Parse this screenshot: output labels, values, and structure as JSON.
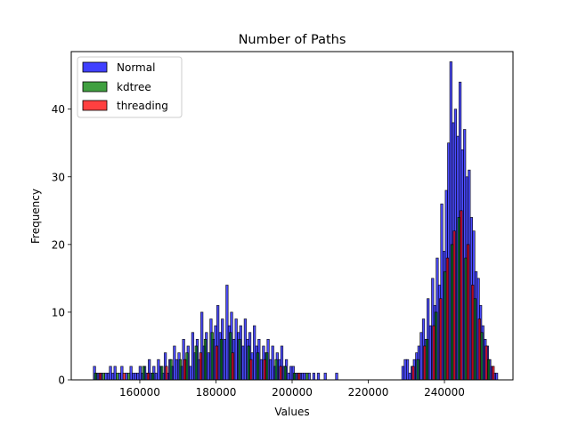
{
  "chart_data": {
    "type": "histogram",
    "title": "Number of Paths",
    "xlabel": "Values",
    "ylabel": "Frequency",
    "xlim": [
      142000,
      258000
    ],
    "ylim": [
      0,
      48.5
    ],
    "xticks": [
      {
        "value": 160000,
        "label": "160000"
      },
      {
        "value": 180000,
        "label": "180000"
      },
      {
        "value": 200000,
        "label": "200000"
      },
      {
        "value": 220000,
        "label": "220000"
      },
      {
        "value": 240000,
        "label": "240000"
      }
    ],
    "yticks": [
      {
        "value": 0,
        "label": "0"
      },
      {
        "value": 10,
        "label": "10"
      },
      {
        "value": 20,
        "label": "20"
      },
      {
        "value": 30,
        "label": "30"
      },
      {
        "value": 40,
        "label": "40"
      }
    ],
    "legend": {
      "position": "top-left",
      "entries": [
        {
          "name": "Normal",
          "color": "#4040ff"
        },
        {
          "name": "kdtree",
          "color": "#40a040"
        },
        {
          "name": "threading",
          "color": "#ff4040"
        }
      ]
    },
    "series": [
      {
        "name": "Normal",
        "color": "#0000ff",
        "opacity": 0.7,
        "bin_width": 600,
        "bins": [
          [
            147800,
            2
          ],
          [
            148400,
            1
          ],
          [
            149000,
            1
          ],
          [
            149600,
            1
          ],
          [
            150800,
            1
          ],
          [
            151400,
            1
          ],
          [
            152000,
            2
          ],
          [
            152600,
            1
          ],
          [
            153200,
            2
          ],
          [
            154400,
            1
          ],
          [
            155000,
            2
          ],
          [
            156200,
            1
          ],
          [
            157400,
            2
          ],
          [
            158000,
            1
          ],
          [
            158600,
            1
          ],
          [
            159200,
            1
          ],
          [
            159800,
            2
          ],
          [
            160400,
            1
          ],
          [
            161000,
            2
          ],
          [
            161600,
            1
          ],
          [
            162200,
            3
          ],
          [
            162800,
            1
          ],
          [
            163400,
            2
          ],
          [
            164000,
            1
          ],
          [
            164600,
            3
          ],
          [
            165200,
            2
          ],
          [
            165800,
            1
          ],
          [
            166400,
            4
          ],
          [
            167000,
            1
          ],
          [
            167600,
            3
          ],
          [
            168200,
            2
          ],
          [
            168800,
            5
          ],
          [
            169400,
            3
          ],
          [
            170000,
            4
          ],
          [
            170600,
            2
          ],
          [
            171200,
            6
          ],
          [
            171800,
            3
          ],
          [
            172400,
            5
          ],
          [
            173000,
            2
          ],
          [
            173600,
            7
          ],
          [
            174200,
            4
          ],
          [
            174800,
            6
          ],
          [
            175400,
            3
          ],
          [
            176000,
            10
          ],
          [
            176600,
            5
          ],
          [
            177200,
            7
          ],
          [
            177800,
            4
          ],
          [
            178400,
            9
          ],
          [
            179000,
            6
          ],
          [
            179600,
            8
          ],
          [
            180200,
            11
          ],
          [
            180800,
            7
          ],
          [
            181400,
            9
          ],
          [
            182000,
            6
          ],
          [
            182600,
            14
          ],
          [
            183200,
            8
          ],
          [
            183800,
            10
          ],
          [
            184400,
            6
          ],
          [
            185000,
            9
          ],
          [
            185600,
            7
          ],
          [
            186200,
            8
          ],
          [
            186800,
            5
          ],
          [
            187400,
            9
          ],
          [
            188000,
            6
          ],
          [
            188600,
            7
          ],
          [
            189200,
            4
          ],
          [
            189800,
            8
          ],
          [
            190400,
            5
          ],
          [
            191000,
            6
          ],
          [
            191600,
            3
          ],
          [
            192200,
            5
          ],
          [
            192800,
            4
          ],
          [
            193400,
            6
          ],
          [
            194000,
            3
          ],
          [
            194600,
            5
          ],
          [
            195200,
            2
          ],
          [
            195800,
            4
          ],
          [
            196400,
            3
          ],
          [
            197000,
            5
          ],
          [
            197600,
            2
          ],
          [
            198200,
            3
          ],
          [
            198800,
            1
          ],
          [
            199400,
            2
          ],
          [
            200000,
            2
          ],
          [
            200600,
            1
          ],
          [
            201200,
            1
          ],
          [
            201800,
            1
          ],
          [
            202400,
            1
          ],
          [
            203000,
            1
          ],
          [
            204200,
            1
          ],
          [
            205400,
            1
          ],
          [
            206600,
            1
          ],
          [
            208400,
            1
          ],
          [
            211400,
            1
          ],
          [
            228800,
            2
          ],
          [
            229400,
            3
          ],
          [
            230000,
            3
          ],
          [
            230600,
            1
          ],
          [
            231200,
            2
          ],
          [
            231800,
            3
          ],
          [
            232400,
            4
          ],
          [
            233000,
            5
          ],
          [
            233600,
            7
          ],
          [
            234200,
            9
          ],
          [
            234800,
            6
          ],
          [
            235400,
            12
          ],
          [
            236000,
            8
          ],
          [
            236600,
            15
          ],
          [
            237200,
            11
          ],
          [
            237800,
            18
          ],
          [
            238400,
            14
          ],
          [
            239000,
            26
          ],
          [
            239600,
            19
          ],
          [
            240200,
            28
          ],
          [
            240800,
            35
          ],
          [
            241400,
            47
          ],
          [
            242000,
            38
          ],
          [
            242600,
            40
          ],
          [
            243200,
            36
          ],
          [
            243800,
            44
          ],
          [
            244400,
            34
          ],
          [
            245000,
            37
          ],
          [
            245600,
            30
          ],
          [
            246200,
            31
          ],
          [
            246800,
            24
          ],
          [
            247400,
            22
          ],
          [
            248000,
            16
          ],
          [
            248600,
            15
          ],
          [
            249200,
            11
          ],
          [
            249800,
            8
          ],
          [
            250400,
            6
          ],
          [
            251000,
            5
          ],
          [
            251600,
            3
          ],
          [
            252200,
            2
          ],
          [
            252800,
            1
          ],
          [
            253400,
            1
          ]
        ]
      },
      {
        "name": "kdtree",
        "color": "#008000",
        "opacity": 0.7,
        "bin_width": 600,
        "bins": [
          [
            148100,
            1
          ],
          [
            150200,
            1
          ],
          [
            153800,
            1
          ],
          [
            156800,
            1
          ],
          [
            160700,
            2
          ],
          [
            163100,
            1
          ],
          [
            165500,
            2
          ],
          [
            167900,
            3
          ],
          [
            170300,
            3
          ],
          [
            172100,
            4
          ],
          [
            174500,
            5
          ],
          [
            176900,
            6
          ],
          [
            178700,
            7
          ],
          [
            181100,
            6
          ],
          [
            183500,
            7
          ],
          [
            185900,
            6
          ],
          [
            188300,
            5
          ],
          [
            190700,
            4
          ],
          [
            193100,
            4
          ],
          [
            195500,
            3
          ],
          [
            197900,
            2
          ],
          [
            200300,
            1
          ],
          [
            203600,
            1
          ],
          [
            232700,
            3
          ],
          [
            235100,
            6
          ],
          [
            237500,
            10
          ],
          [
            239900,
            16
          ],
          [
            241700,
            20
          ],
          [
            243500,
            24
          ],
          [
            245300,
            18
          ],
          [
            247700,
            12
          ],
          [
            249500,
            7
          ],
          [
            251300,
            3
          ]
        ]
      },
      {
        "name": "threading",
        "color": "#ff0000",
        "opacity": 0.7,
        "bin_width": 600,
        "bins": [
          [
            149300,
            1
          ],
          [
            155600,
            1
          ],
          [
            161900,
            1
          ],
          [
            166700,
            2
          ],
          [
            171500,
            3
          ],
          [
            175700,
            4
          ],
          [
            179900,
            5
          ],
          [
            184100,
            4
          ],
          [
            188900,
            3
          ],
          [
            192500,
            3
          ],
          [
            196700,
            2
          ],
          [
            201500,
            1
          ],
          [
            231500,
            2
          ],
          [
            234500,
            5
          ],
          [
            236900,
            8
          ],
          [
            238700,
            12
          ],
          [
            240500,
            18
          ],
          [
            242300,
            22
          ],
          [
            244100,
            25
          ],
          [
            245900,
            20
          ],
          [
            247100,
            14
          ],
          [
            248900,
            9
          ],
          [
            250700,
            5
          ],
          [
            252500,
            2
          ]
        ]
      }
    ]
  }
}
